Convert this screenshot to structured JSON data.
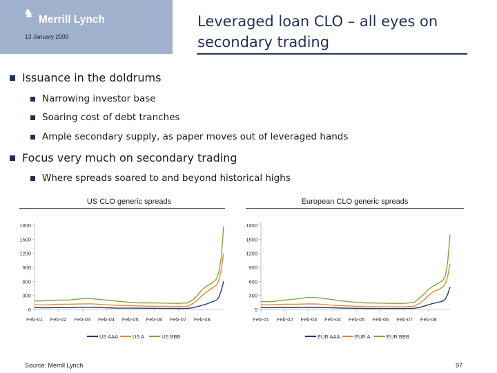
{
  "header": {
    "logo_mark": "♞",
    "logo_text": "Merrill Lynch",
    "date": "13 January 2009",
    "title": "Leveraged loan CLO – all eyes on secondary trading"
  },
  "bullets": [
    {
      "level": 1,
      "text": "Issuance in the doldrums"
    },
    {
      "level": 2,
      "text": "Narrowing investor base"
    },
    {
      "level": 2,
      "text": "Soaring cost of debt tranches"
    },
    {
      "level": 2,
      "text": "Ample secondary supply, as paper moves out of leveraged hands"
    },
    {
      "level": 1,
      "text": "Focus very much on secondary trading"
    },
    {
      "level": 2,
      "text": "Where spreads soared to and beyond historical highs"
    }
  ],
  "chart_data": [
    {
      "type": "line",
      "title": "US CLO generic spreads",
      "xlabel": "",
      "ylabel": "",
      "ylim": [
        0,
        1800
      ],
      "yticks": [
        0,
        300,
        600,
        900,
        1200,
        1500,
        1800
      ],
      "ytick_labels": [
        "0",
        "300",
        "600",
        "900",
        "1200",
        "1500",
        "1800"
      ],
      "xticks": [
        "Feb-01",
        "Feb-02",
        "Feb-03",
        "Feb-04",
        "Feb-05",
        "Feb-06",
        "Feb-07",
        "Feb-08"
      ],
      "x": [
        2001.1,
        2001.5,
        2002.1,
        2002.5,
        2003.1,
        2003.5,
        2004.1,
        2004.5,
        2005.1,
        2005.5,
        2006.1,
        2006.5,
        2007.1,
        2007.5,
        2007.7,
        2007.9,
        2008.1,
        2008.3,
        2008.5,
        2008.7,
        2008.8,
        2008.9,
        2009.0
      ],
      "xlim": [
        2001.1,
        2009.0
      ],
      "legend_position": "bottom",
      "grid": false,
      "series": [
        {
          "name": "US AAA",
          "color": "#1f3d7a",
          "values": [
            40,
            35,
            40,
            38,
            45,
            45,
            35,
            30,
            28,
            26,
            25,
            24,
            22,
            22,
            35,
            60,
            90,
            120,
            160,
            200,
            260,
            400,
            600
          ]
        },
        {
          "name": "US A",
          "color": "#e8892b",
          "values": [
            100,
            95,
            110,
            110,
            120,
            120,
            100,
            90,
            80,
            75,
            70,
            68,
            65,
            70,
            120,
            200,
            300,
            380,
            450,
            520,
            620,
            850,
            1200
          ]
        },
        {
          "name": "US BBB",
          "color": "#7fa83a",
          "values": [
            180,
            185,
            200,
            200,
            230,
            230,
            200,
            180,
            150,
            140,
            140,
            135,
            130,
            140,
            200,
            300,
            420,
            500,
            560,
            650,
            800,
            1100,
            1780
          ]
        }
      ]
    },
    {
      "type": "line",
      "title": "European CLO generic spreads",
      "xlabel": "",
      "ylabel": "",
      "ylim": [
        0,
        1800
      ],
      "yticks": [
        0,
        300,
        600,
        900,
        1200,
        1500,
        1800
      ],
      "ytick_labels": [
        "0",
        "300",
        "600",
        "900",
        "1200",
        "1500",
        "1800"
      ],
      "xticks": [
        "Feb-01",
        "Feb-02",
        "Feb-03",
        "Feb-04",
        "Feb-05",
        "Feb-06",
        "Feb-07",
        "Feb-08"
      ],
      "x": [
        2001.1,
        2001.5,
        2002.1,
        2002.5,
        2003.1,
        2003.5,
        2004.1,
        2004.5,
        2005.1,
        2005.5,
        2006.1,
        2006.5,
        2007.1,
        2007.5,
        2007.7,
        2007.9,
        2008.1,
        2008.3,
        2008.5,
        2008.7,
        2008.8,
        2008.9,
        2009.0
      ],
      "xlim": [
        2001.1,
        2009.0
      ],
      "legend_position": "bottom",
      "grid": false,
      "series": [
        {
          "name": "EUR AAA",
          "color": "#1f3d7a",
          "values": [
            40,
            38,
            42,
            40,
            45,
            42,
            35,
            30,
            25,
            22,
            20,
            20,
            20,
            25,
            40,
            70,
            100,
            130,
            150,
            180,
            220,
            320,
            480
          ]
        },
        {
          "name": "EUR A",
          "color": "#e8892b",
          "values": [
            100,
            100,
            110,
            110,
            120,
            115,
            90,
            80,
            70,
            65,
            60,
            60,
            58,
            70,
            120,
            200,
            300,
            380,
            420,
            480,
            550,
            700,
            980
          ]
        },
        {
          "name": "EUR BBB",
          "color": "#7fa83a",
          "values": [
            170,
            165,
            200,
            220,
            260,
            250,
            210,
            180,
            150,
            140,
            135,
            130,
            130,
            150,
            230,
            320,
            430,
            500,
            560,
            620,
            720,
            1000,
            1600
          ]
        }
      ]
    }
  ],
  "footer": {
    "source": "Source: Merrill Lynch",
    "page": "97"
  }
}
